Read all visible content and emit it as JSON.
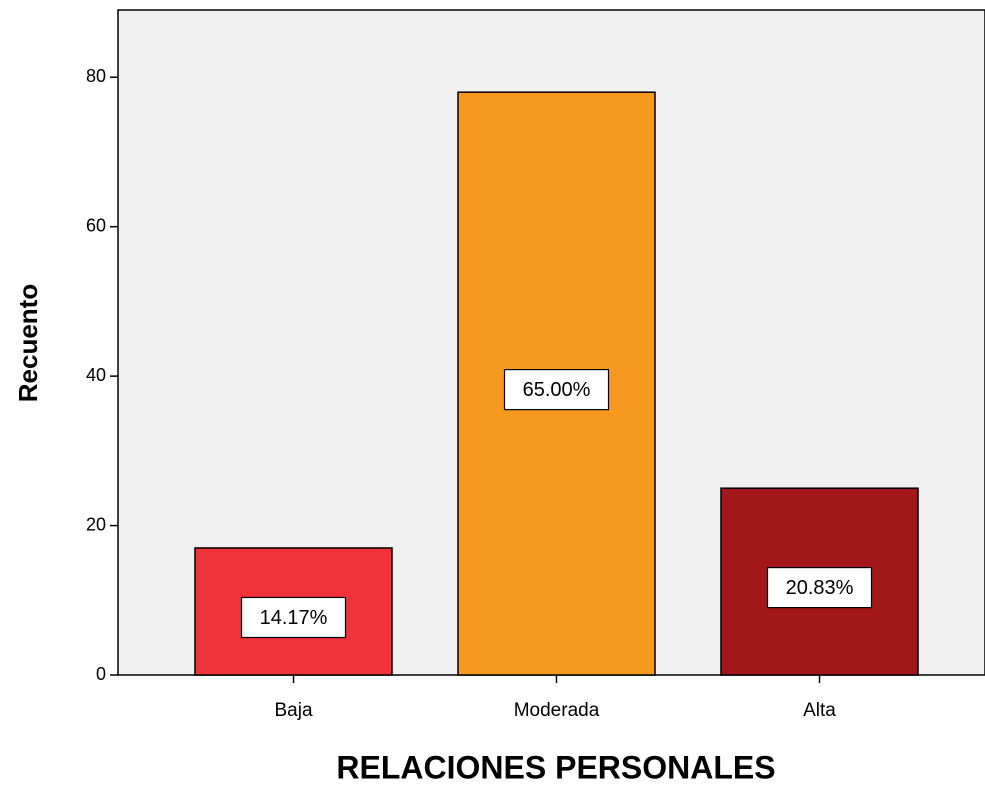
{
  "chart_data": {
    "type": "bar",
    "x_label": "RELACIONES PERSONALES",
    "y_label": "Recuento",
    "categories": [
      "Baja",
      "Moderada",
      "Alta"
    ],
    "values": [
      17,
      78,
      25
    ],
    "percent_labels": [
      "14.17%",
      "65.00%",
      "20.83%"
    ],
    "colors": [
      "#f0333a",
      "#f7991f",
      "#a3161a"
    ],
    "ylim": [
      0,
      89
    ],
    "yticks": [
      0,
      20,
      40,
      60,
      80
    ],
    "grid": false
  }
}
